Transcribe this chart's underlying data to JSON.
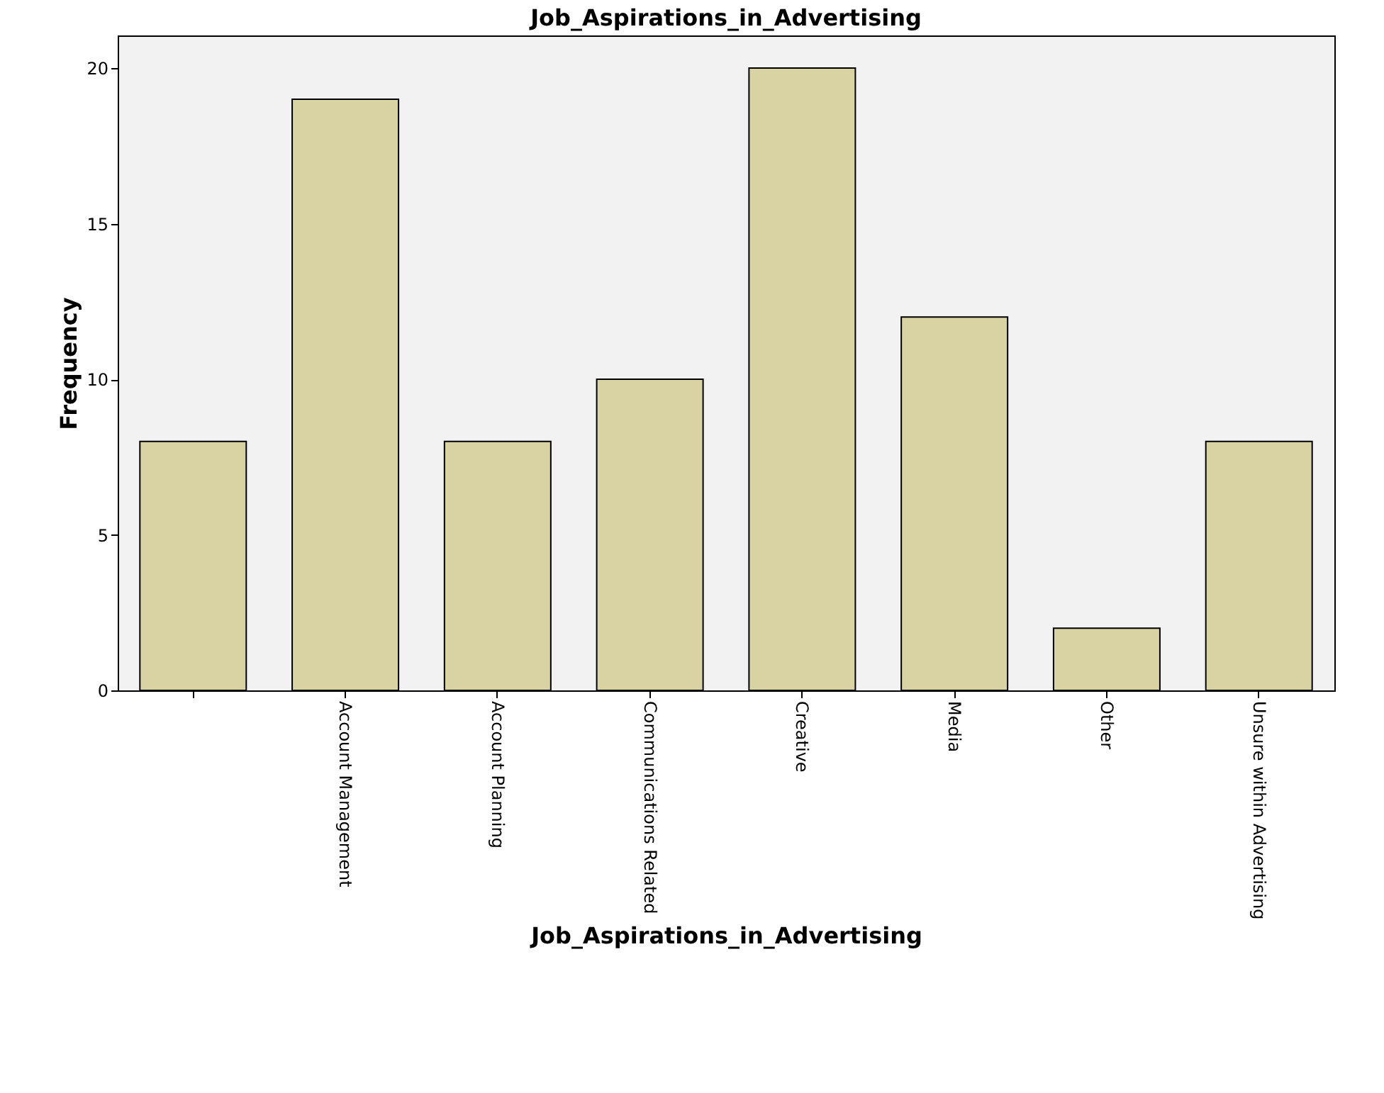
{
  "chart_data": {
    "type": "bar",
    "title": "Job_Aspirations_in_Advertising",
    "xlabel": "Job_Aspirations_in_Advertising",
    "ylabel": "Frequency",
    "categories": [
      null,
      "Account Management",
      "Account Planning",
      "Communications Related",
      "Creative",
      "Media",
      "Other",
      "Unsure within Advertising"
    ],
    "values": [
      8,
      19,
      8,
      10,
      20,
      12,
      2,
      8
    ],
    "color": "#d9d3a3",
    "ylim": [
      0,
      21.05
    ],
    "yticks": [
      0,
      5,
      10,
      15,
      20
    ],
    "grid": false
  }
}
